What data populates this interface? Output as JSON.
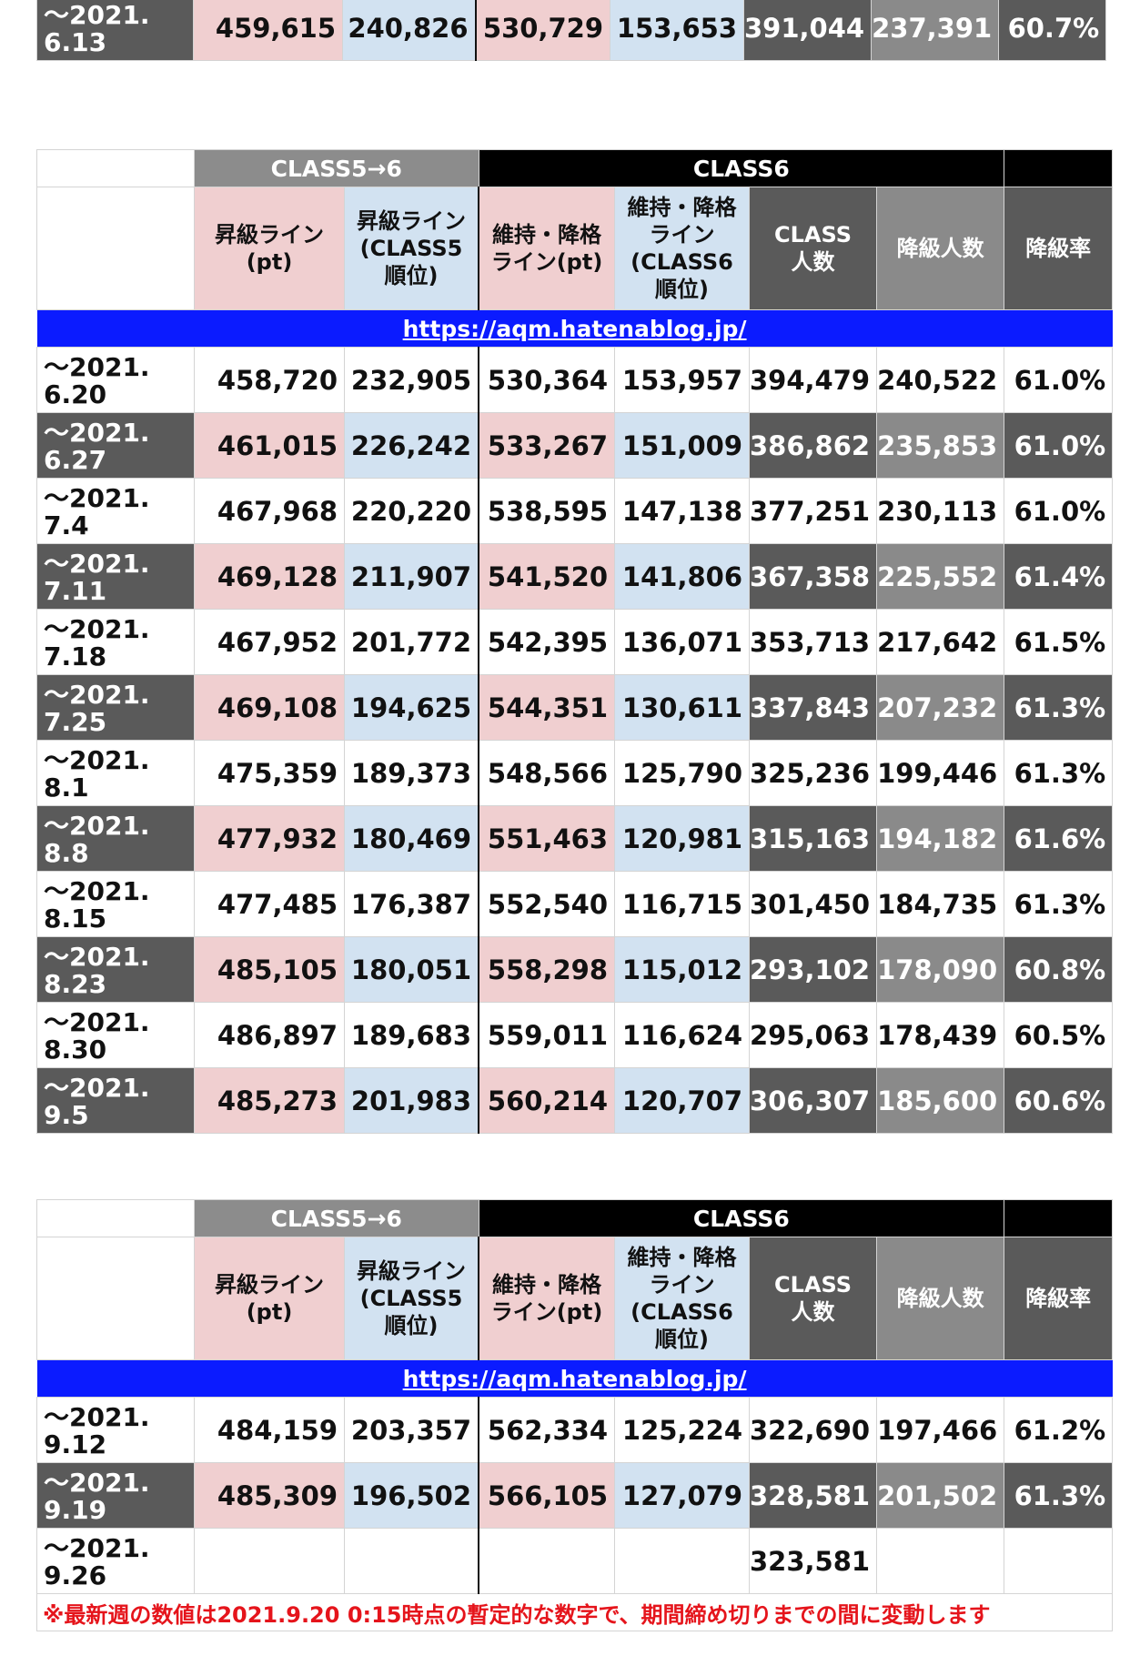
{
  "top_row": {
    "date": "〜2021.\n6.13",
    "values": [
      "459,615",
      "240,826",
      "530,729",
      "153,653",
      "391,044",
      "237,391",
      "60.7%"
    ]
  },
  "headers": {
    "group_left": "CLASS5→6",
    "group_right": "CLASS6",
    "col1": "昇級ライン\n(pt)",
    "col2": "昇級ライン\n(CLASS5\n順位)",
    "col3": "維持・降格\nライン(pt)",
    "col4": "維持・降格\nライン\n(CLASS6\n順位)",
    "col5": "CLASS\n人数",
    "col6": "降級人数",
    "col7": "降級率"
  },
  "url": "https://aqm.hatenablog.jp/",
  "table1_rows": [
    {
      "date": "〜2021.\n6.20",
      "values": [
        "458,720",
        "232,905",
        "530,364",
        "153,957",
        "394,479",
        "240,522",
        "61.0%"
      ]
    },
    {
      "date": "〜2021.\n6.27",
      "values": [
        "461,015",
        "226,242",
        "533,267",
        "151,009",
        "386,862",
        "235,853",
        "61.0%"
      ]
    },
    {
      "date": "〜2021.\n7.4",
      "values": [
        "467,968",
        "220,220",
        "538,595",
        "147,138",
        "377,251",
        "230,113",
        "61.0%"
      ]
    },
    {
      "date": "〜2021.\n7.11",
      "values": [
        "469,128",
        "211,907",
        "541,520",
        "141,806",
        "367,358",
        "225,552",
        "61.4%"
      ]
    },
    {
      "date": "〜2021.\n7.18",
      "values": [
        "467,952",
        "201,772",
        "542,395",
        "136,071",
        "353,713",
        "217,642",
        "61.5%"
      ]
    },
    {
      "date": "〜2021.\n7.25",
      "values": [
        "469,108",
        "194,625",
        "544,351",
        "130,611",
        "337,843",
        "207,232",
        "61.3%"
      ]
    },
    {
      "date": "〜2021.\n8.1",
      "values": [
        "475,359",
        "189,373",
        "548,566",
        "125,790",
        "325,236",
        "199,446",
        "61.3%"
      ]
    },
    {
      "date": "〜2021.\n8.8",
      "values": [
        "477,932",
        "180,469",
        "551,463",
        "120,981",
        "315,163",
        "194,182",
        "61.6%"
      ]
    },
    {
      "date": "〜2021.\n8.15",
      "values": [
        "477,485",
        "176,387",
        "552,540",
        "116,715",
        "301,450",
        "184,735",
        "61.3%"
      ]
    },
    {
      "date": "〜2021.\n8.23",
      "values": [
        "485,105",
        "180,051",
        "558,298",
        "115,012",
        "293,102",
        "178,090",
        "60.8%"
      ]
    },
    {
      "date": "〜2021.\n8.30",
      "values": [
        "486,897",
        "189,683",
        "559,011",
        "116,624",
        "295,063",
        "178,439",
        "60.5%"
      ]
    },
    {
      "date": "〜2021.\n9.5",
      "values": [
        "485,273",
        "201,983",
        "560,214",
        "120,707",
        "306,307",
        "185,600",
        "60.6%"
      ]
    }
  ],
  "table2_rows": [
    {
      "date": "〜2021.\n9.12",
      "values": [
        "484,159",
        "203,357",
        "562,334",
        "125,224",
        "322,690",
        "197,466",
        "61.2%"
      ]
    },
    {
      "date": "〜2021.\n9.19",
      "values": [
        "485,309",
        "196,502",
        "566,105",
        "127,079",
        "328,581",
        "201,502",
        "61.3%"
      ]
    },
    {
      "date": "〜2021.\n9.26",
      "values": [
        "",
        "",
        "",
        "",
        "323,581",
        "",
        ""
      ]
    }
  ],
  "note": "※最新週の数値は2021.9.20 0:15時点の暫定的な数字で、期間締め切りまでの間に変動します"
}
